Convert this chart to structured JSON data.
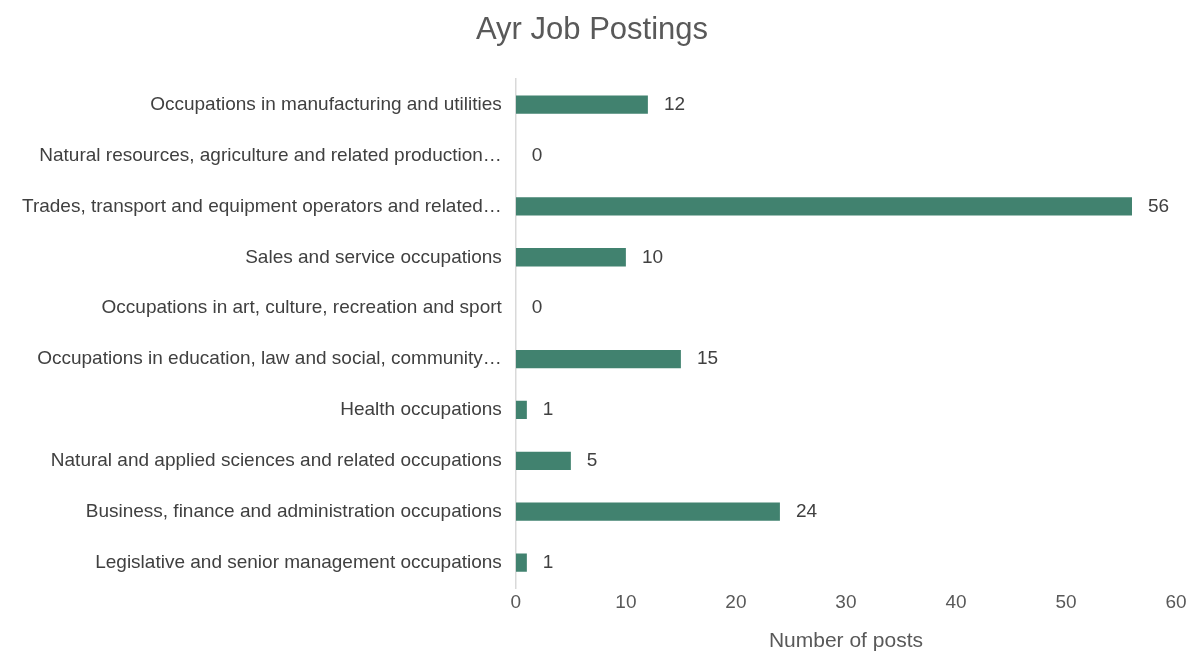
{
  "chart_data": {
    "type": "bar",
    "orientation": "horizontal",
    "title": "Ayr Job Postings",
    "xlabel": "Number of posts",
    "categories": [
      "Occupations in manufacturing and utilities",
      "Natural resources, agriculture and related production…",
      "Trades, transport and equipment operators and related…",
      "Sales and service occupations",
      "Occupations in art, culture, recreation and sport",
      "Occupations in education, law and social, community…",
      "Health occupations",
      "Natural and applied sciences and related occupations",
      "Business, finance and administration occupations",
      "Legislative and senior management occupations"
    ],
    "values": [
      12,
      0,
      56,
      10,
      0,
      15,
      1,
      5,
      24,
      1
    ],
    "color": "#41826f",
    "xlim": [
      0,
      60
    ],
    "xticks": [
      0,
      10,
      20,
      30,
      40,
      50,
      60
    ],
    "grid": false,
    "legend": false,
    "data_labels": true
  }
}
